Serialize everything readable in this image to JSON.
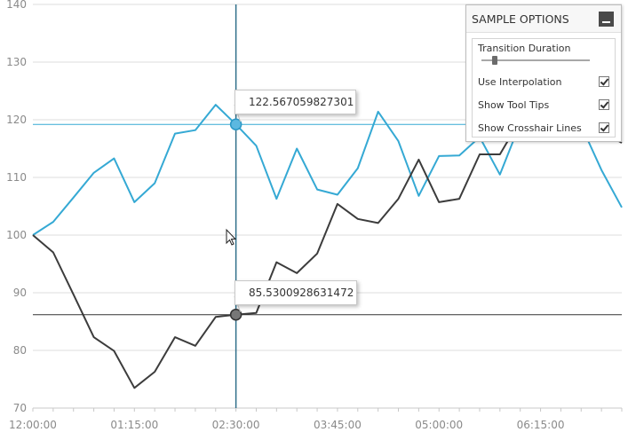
{
  "chart_data": {
    "type": "line",
    "x_tick_labels": [
      "12:00:00",
      "01:15:00",
      "02:30:00",
      "03:45:00",
      "05:00:00",
      "06:15:00"
    ],
    "x": [
      0,
      0.5,
      1,
      1.5,
      2,
      2.5,
      3,
      3.5,
      4,
      4.5,
      5,
      5.5,
      6,
      6.5,
      7,
      7.5,
      8,
      8.5,
      9,
      9.5,
      10,
      10.5,
      11,
      11.5,
      12,
      12.5,
      13,
      13.5,
      14,
      14.5
    ],
    "x_labels_at": [
      0,
      2.5,
      5,
      7.5,
      10,
      12.5
    ],
    "xlim": [
      0,
      14.5
    ],
    "ylim": [
      70,
      140
    ],
    "yticks": [
      70,
      80,
      90,
      100,
      110,
      120,
      130,
      140
    ],
    "grid": true,
    "series": [
      {
        "color": "#35a9d4",
        "values": [
          100,
          102.3,
          106.5,
          110.8,
          113.3,
          105.7,
          109,
          117.6,
          118.2,
          122.6,
          119.2,
          115.5,
          106.3,
          115,
          107.9,
          107,
          111.6,
          121.4,
          116.3,
          106.8,
          113.7,
          113.8,
          117,
          110.5,
          119.4,
          121.5,
          122.5,
          119,
          111.3,
          104.8
        ]
      },
      {
        "color": "#3c3c3c",
        "values": [
          100,
          97,
          89.7,
          82.3,
          79.9,
          73.5,
          76.3,
          82.3,
          80.8,
          85.8,
          86.2,
          86.5,
          95.3,
          93.4,
          96.8,
          105.4,
          102.8,
          102.1,
          106.3,
          113.1,
          105.7,
          106.3,
          114,
          114,
          120,
          122,
          124,
          121,
          118,
          116
        ]
      }
    ],
    "crosshair": {
      "x": 5,
      "y_blue": 119.2,
      "y_dark": 86.2
    }
  },
  "tooltips": {
    "blue": {
      "text": "122.567059827301",
      "color": "#35a9d4"
    },
    "dark": {
      "text": "85.5300928631472",
      "color": "#3c3c3c"
    }
  },
  "options_panel": {
    "title": "SAMPLE OPTIONS",
    "transition_label": "Transition Duration",
    "slider_value_fraction": 0.1,
    "checkboxes": [
      {
        "label": "Use Interpolation",
        "checked": true
      },
      {
        "label": "Show Tool Tips",
        "checked": true
      },
      {
        "label": "Show Crosshair Lines",
        "checked": true
      }
    ]
  }
}
